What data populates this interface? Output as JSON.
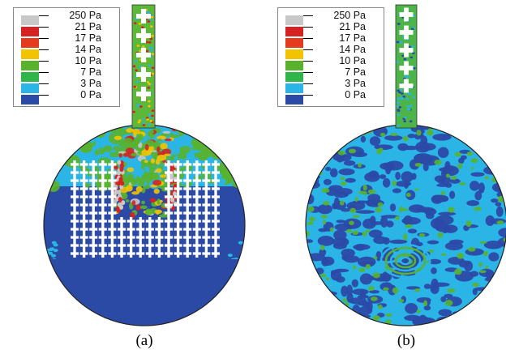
{
  "panels": [
    {
      "id": "a",
      "caption": "(a)"
    },
    {
      "id": "b",
      "caption": "(b)"
    }
  ],
  "legend": {
    "entries": [
      {
        "label": "250 Pa",
        "color": "#c8c8c8"
      },
      {
        "label": "21 Pa",
        "color": "#d62222"
      },
      {
        "label": "17 Pa",
        "color": "#e43a1e"
      },
      {
        "label": "14 Pa",
        "color": "#f2c400"
      },
      {
        "label": "10 Pa",
        "color": "#58b22e"
      },
      {
        "label": "7 Pa",
        "color": "#2fb54a"
      },
      {
        "label": "3 Pa",
        "color": "#2ab5e6"
      },
      {
        "label": "0 Pa",
        "color": "#2b4aa6"
      }
    ]
  },
  "colors": {
    "low": "#2b4aa6",
    "cyan": "#2ab5e6",
    "green": "#58b22e",
    "yellow": "#f2c400",
    "red": "#d62222",
    "gray": "#c8c8c8"
  }
}
